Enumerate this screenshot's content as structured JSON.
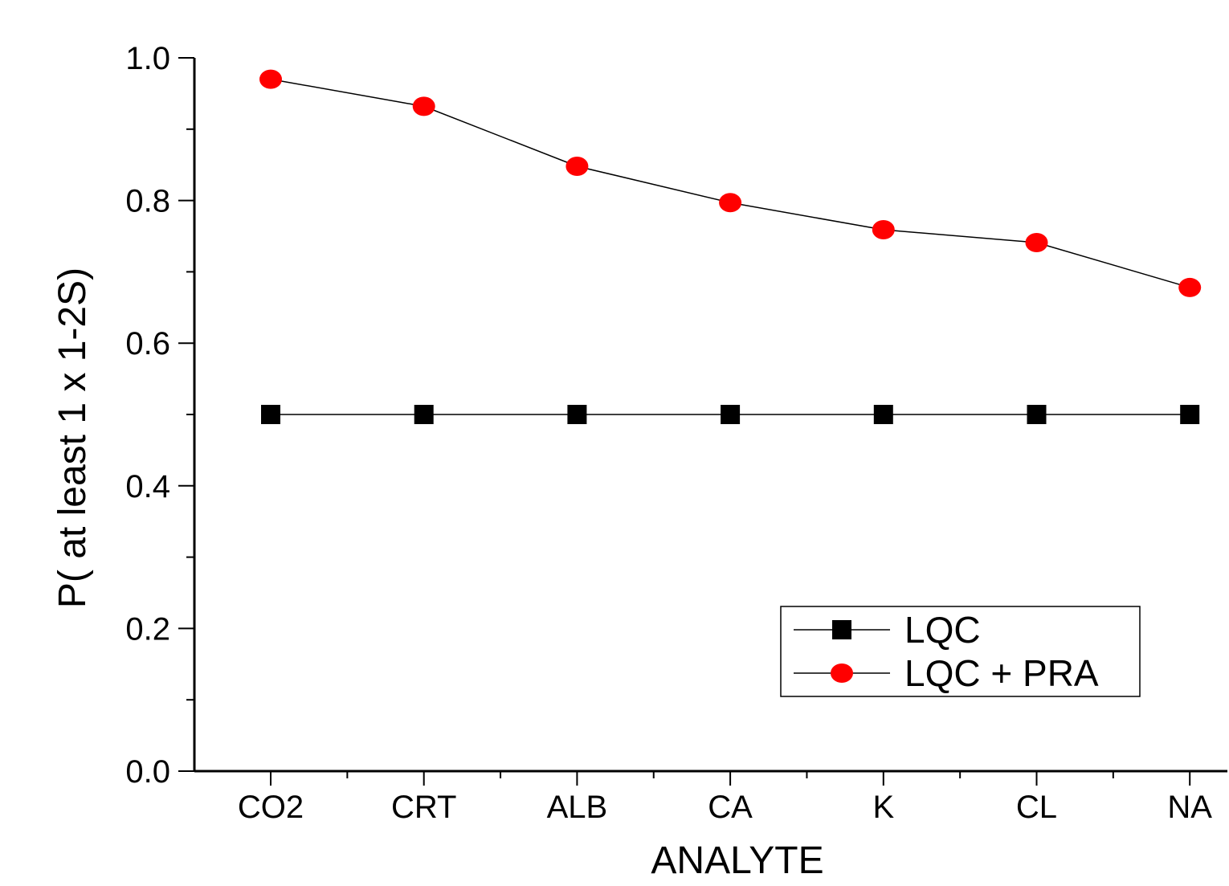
{
  "chart_data": {
    "type": "line",
    "title": "",
    "xlabel": "ANALYTE",
    "ylabel": "P( at least 1 x 1-2S)",
    "categories": [
      "CO2",
      "CRT",
      "ALB",
      "CA",
      "K",
      "CL",
      "NA"
    ],
    "ylim": [
      0,
      1.0
    ],
    "y_ticks": [
      "0.0",
      "0.2",
      "0.4",
      "0.6",
      "0.8",
      "1.0"
    ],
    "grid": false,
    "legend_position": "lower-right",
    "series": [
      {
        "name": "LQC",
        "marker": "square",
        "color": "#000000",
        "values": [
          0.5,
          0.5,
          0.5,
          0.5,
          0.5,
          0.5,
          0.5
        ]
      },
      {
        "name": "LQC + PRA",
        "marker": "circle",
        "color": "#ff0000",
        "values": [
          0.97,
          0.932,
          0.848,
          0.797,
          0.759,
          0.741,
          0.678
        ]
      }
    ]
  }
}
